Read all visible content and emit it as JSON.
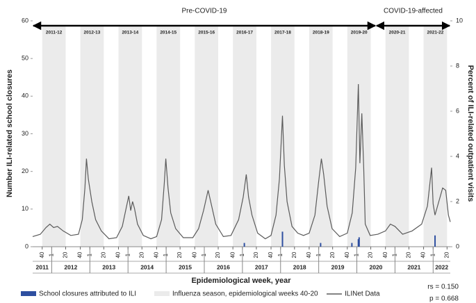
{
  "chart_data": {
    "type": "line",
    "periods": [
      {
        "label": "Pre-COVID-19",
        "start": 2011.5,
        "end": 2020.5
      },
      {
        "label": "COVID-19-affected",
        "start": 2020.5,
        "end": 2022.45
      }
    ],
    "seasons": [
      {
        "label": "2011-12",
        "start": 2011.75,
        "end": 2012.365
      },
      {
        "label": "2012-13",
        "start": 2012.75,
        "end": 2013.365
      },
      {
        "label": "2013-14",
        "start": 2013.75,
        "end": 2014.365
      },
      {
        "label": "2014-15",
        "start": 2014.75,
        "end": 2015.365
      },
      {
        "label": "2015-16",
        "start": 2015.75,
        "end": 2016.365
      },
      {
        "label": "2016-17",
        "start": 2016.75,
        "end": 2017.365
      },
      {
        "label": "2017-18",
        "start": 2017.75,
        "end": 2018.365
      },
      {
        "label": "2018-19",
        "start": 2018.75,
        "end": 2019.365
      },
      {
        "label": "2019-20",
        "start": 2019.75,
        "end": 2020.365
      },
      {
        "label": "2020-21",
        "start": 2020.75,
        "end": 2021.365
      },
      {
        "label": "2021-22",
        "start": 2021.75,
        "end": 2022.365
      }
    ],
    "season_legend": "Influenza season, epidemiological weeks 40-20",
    "season_color": "#ebebeb",
    "xlabel": "Epidemiological week, year",
    "ylabel": "Number ILI-related school closures",
    "y2label": "Percent of ILI-related outpatient visits",
    "xlim": [
      2011.5,
      2022.45
    ],
    "ylim": [
      0,
      60
    ],
    "yticks": [
      0,
      10,
      20,
      30,
      40,
      50,
      60
    ],
    "y2lim": [
      0,
      10
    ],
    "y2ticks": [
      0,
      2,
      4,
      6,
      8,
      10
    ],
    "xticks": [
      {
        "value": 2011.75,
        "label": "40"
      },
      {
        "value": 2012,
        "label": "1"
      },
      {
        "value": 2012.365,
        "label": "20"
      },
      {
        "value": 2012.75,
        "label": "40"
      },
      {
        "value": 2013,
        "label": "1"
      },
      {
        "value": 2013.365,
        "label": "20"
      },
      {
        "value": 2013.75,
        "label": "40"
      },
      {
        "value": 2014,
        "label": "1"
      },
      {
        "value": 2014.365,
        "label": "20"
      },
      {
        "value": 2014.75,
        "label": "40"
      },
      {
        "value": 2015,
        "label": "1"
      },
      {
        "value": 2015.365,
        "label": "20"
      },
      {
        "value": 2015.75,
        "label": "40"
      },
      {
        "value": 2016,
        "label": "1"
      },
      {
        "value": 2016.365,
        "label": "20"
      },
      {
        "value": 2016.75,
        "label": "40"
      },
      {
        "value": 2017,
        "label": "1"
      },
      {
        "value": 2017.365,
        "label": "20"
      },
      {
        "value": 2017.75,
        "label": "40"
      },
      {
        "value": 2018,
        "label": "1"
      },
      {
        "value": 2018.365,
        "label": "20"
      },
      {
        "value": 2018.75,
        "label": "40"
      },
      {
        "value": 2019,
        "label": "1"
      },
      {
        "value": 2019.365,
        "label": "20"
      },
      {
        "value": 2019.75,
        "label": "40"
      },
      {
        "value": 2020,
        "label": "1"
      },
      {
        "value": 2020.365,
        "label": "20"
      },
      {
        "value": 2020.75,
        "label": "40"
      },
      {
        "value": 2021,
        "label": "1"
      },
      {
        "value": 2021.365,
        "label": "20"
      },
      {
        "value": 2021.75,
        "label": "40"
      },
      {
        "value": 2022,
        "label": "1"
      },
      {
        "value": 2022.365,
        "label": "20"
      }
    ],
    "years": [
      2011,
      2012,
      2013,
      2014,
      2015,
      2016,
      2017,
      2018,
      2019,
      2020,
      2021,
      2022
    ],
    "series": [
      {
        "name": "ILINet Data",
        "color": "#5a5a5a",
        "axis": "y2",
        "x": [
          2011.5,
          2011.7,
          2011.85,
          2011.95,
          2012.05,
          2012.15,
          2012.3,
          2012.5,
          2012.7,
          2012.8,
          2012.87,
          2012.91,
          2012.96,
          2013.05,
          2013.15,
          2013.3,
          2013.5,
          2013.7,
          2013.85,
          2013.95,
          2014.02,
          2014.07,
          2014.12,
          2014.17,
          2014.25,
          2014.4,
          2014.6,
          2014.75,
          2014.88,
          2014.95,
          2014.99,
          2015.05,
          2015.12,
          2015.25,
          2015.45,
          2015.7,
          2015.85,
          2015.98,
          2016.1,
          2016.18,
          2016.3,
          2016.5,
          2016.7,
          2016.9,
          2017.02,
          2017.1,
          2017.16,
          2017.25,
          2017.4,
          2017.6,
          2017.75,
          2017.88,
          2017.97,
          2018.05,
          2018.1,
          2018.17,
          2018.3,
          2018.45,
          2018.6,
          2018.75,
          2018.9,
          2019.0,
          2019.07,
          2019.13,
          2019.22,
          2019.35,
          2019.55,
          2019.75,
          2019.88,
          2019.97,
          2020.04,
          2020.08,
          2020.13,
          2020.18,
          2020.22,
          2020.35,
          2020.55,
          2020.75,
          2020.88,
          2021.0,
          2021.2,
          2021.45,
          2021.7,
          2021.85,
          2021.96,
          2022.0,
          2022.05,
          2022.15,
          2022.25,
          2022.33,
          2022.4,
          2022.45
        ],
        "values": [
          0.45,
          0.55,
          0.85,
          1.0,
          0.85,
          0.9,
          0.7,
          0.5,
          0.55,
          1.2,
          2.6,
          3.9,
          3.0,
          2.0,
          1.2,
          0.7,
          0.35,
          0.4,
          0.9,
          1.7,
          2.25,
          1.6,
          2.0,
          1.7,
          1.0,
          0.5,
          0.35,
          0.45,
          1.2,
          2.8,
          3.9,
          2.6,
          1.5,
          0.8,
          0.4,
          0.4,
          0.8,
          1.6,
          2.5,
          1.9,
          1.0,
          0.45,
          0.5,
          1.2,
          2.2,
          3.2,
          2.2,
          1.4,
          0.6,
          0.35,
          0.5,
          1.4,
          3.0,
          5.8,
          3.6,
          2.0,
          0.9,
          0.6,
          0.5,
          0.6,
          1.4,
          2.9,
          3.9,
          3.2,
          1.8,
          0.8,
          0.45,
          0.6,
          1.5,
          3.5,
          7.2,
          3.7,
          5.9,
          3.5,
          1.0,
          0.5,
          0.55,
          0.7,
          1.0,
          0.9,
          0.55,
          0.7,
          1.0,
          1.8,
          3.5,
          1.9,
          1.4,
          2.0,
          2.6,
          2.5,
          1.4,
          1.1
        ]
      },
      {
        "name": "School closures attributed to ILI",
        "color": "#2e4fa0",
        "axis": "y",
        "x": [
          2017.05,
          2018.05,
          2019.05,
          2019.87,
          2020.04,
          2020.06,
          2022.05
        ],
        "values": [
          1,
          4,
          1,
          1,
          2,
          2.5,
          3
        ]
      }
    ],
    "stats": [
      "rs = 0.150",
      "p = 0.668"
    ]
  }
}
